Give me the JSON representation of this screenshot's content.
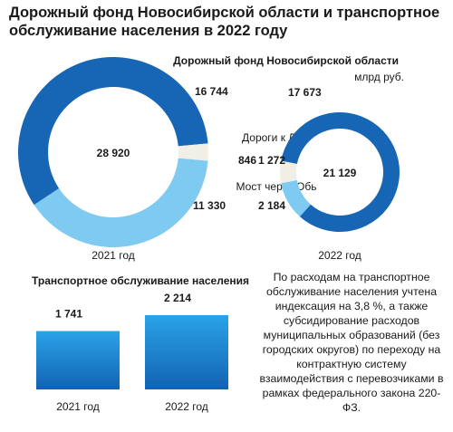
{
  "title": "Дорожный фонд Новосибирской области и транспортное обслуживание населения в 2022 году",
  "note": "По расходам на транспортное обслуживание населения учтена индексация на 3,8 %, а также субсидирование расходов муниципальных образований (без городских округов) по переходу на контрактную систему взаимодействия с перевозчиками в рамках федерального закона 220-ФЗ.",
  "chart_data": [
    {
      "type": "donut",
      "title": "Дорожный фонд Новосибирской области",
      "unit": "млрд руб.",
      "categories": [
        null,
        "Дороги к ЛДС",
        "Мост через Обь"
      ],
      "colors": [
        "#1766b5",
        "#f1eee6",
        "#7fcaf0"
      ],
      "series": [
        {
          "name": "2021 год",
          "values": [
            16744,
            846,
            11330
          ],
          "value_labels": [
            "16 744",
            "846",
            "11 330"
          ],
          "total": {
            "value": 28920,
            "label": "28 920"
          }
        },
        {
          "name": "2022 год",
          "values": [
            17673,
            1272,
            2184
          ],
          "value_labels": [
            "17 673",
            "1 272",
            "2 184"
          ],
          "total": {
            "value": 21129,
            "label": "21 129"
          }
        }
      ]
    },
    {
      "type": "bar",
      "title": "Транспортное обслуживание населения",
      "categories": [
        "2021 год",
        "2022 год"
      ],
      "values": [
        1741,
        2214
      ],
      "value_labels": [
        "1 741",
        "2 214"
      ],
      "color": "#1a7fd0"
    }
  ]
}
